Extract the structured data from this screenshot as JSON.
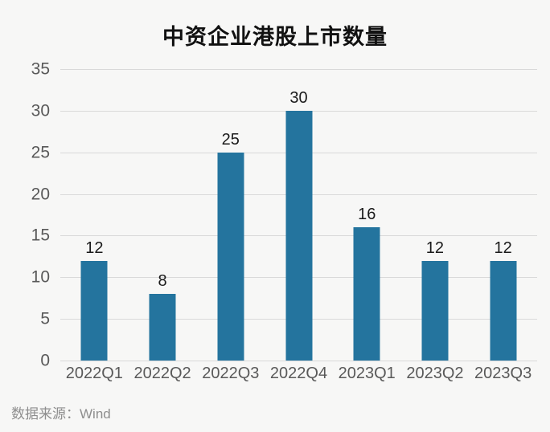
{
  "title": "中资企业港股上市数量",
  "footer": {
    "source_label": "数据来源：Wind"
  },
  "colors": {
    "bar": "#24749e",
    "grid_line": "#d9d9d9",
    "axis_text": "#595959",
    "value_label": "#1a1a1a",
    "background": "#f7f7f6",
    "footer_text": "#8e8e8e"
  },
  "chart_data": {
    "type": "bar",
    "title": "中资企业港股上市数量",
    "categories": [
      "2022Q1",
      "2022Q2",
      "2022Q3",
      "2022Q4",
      "2023Q1",
      "2023Q2",
      "2023Q3"
    ],
    "values": [
      12,
      8,
      25,
      30,
      16,
      12,
      12
    ],
    "xlabel": "",
    "ylabel": "",
    "ylim": [
      0,
      35
    ],
    "yticks": [
      0,
      5,
      10,
      15,
      20,
      25,
      30,
      35
    ],
    "grid": "horizontal",
    "legend": "none",
    "data_labels": true,
    "source": "Wind"
  }
}
